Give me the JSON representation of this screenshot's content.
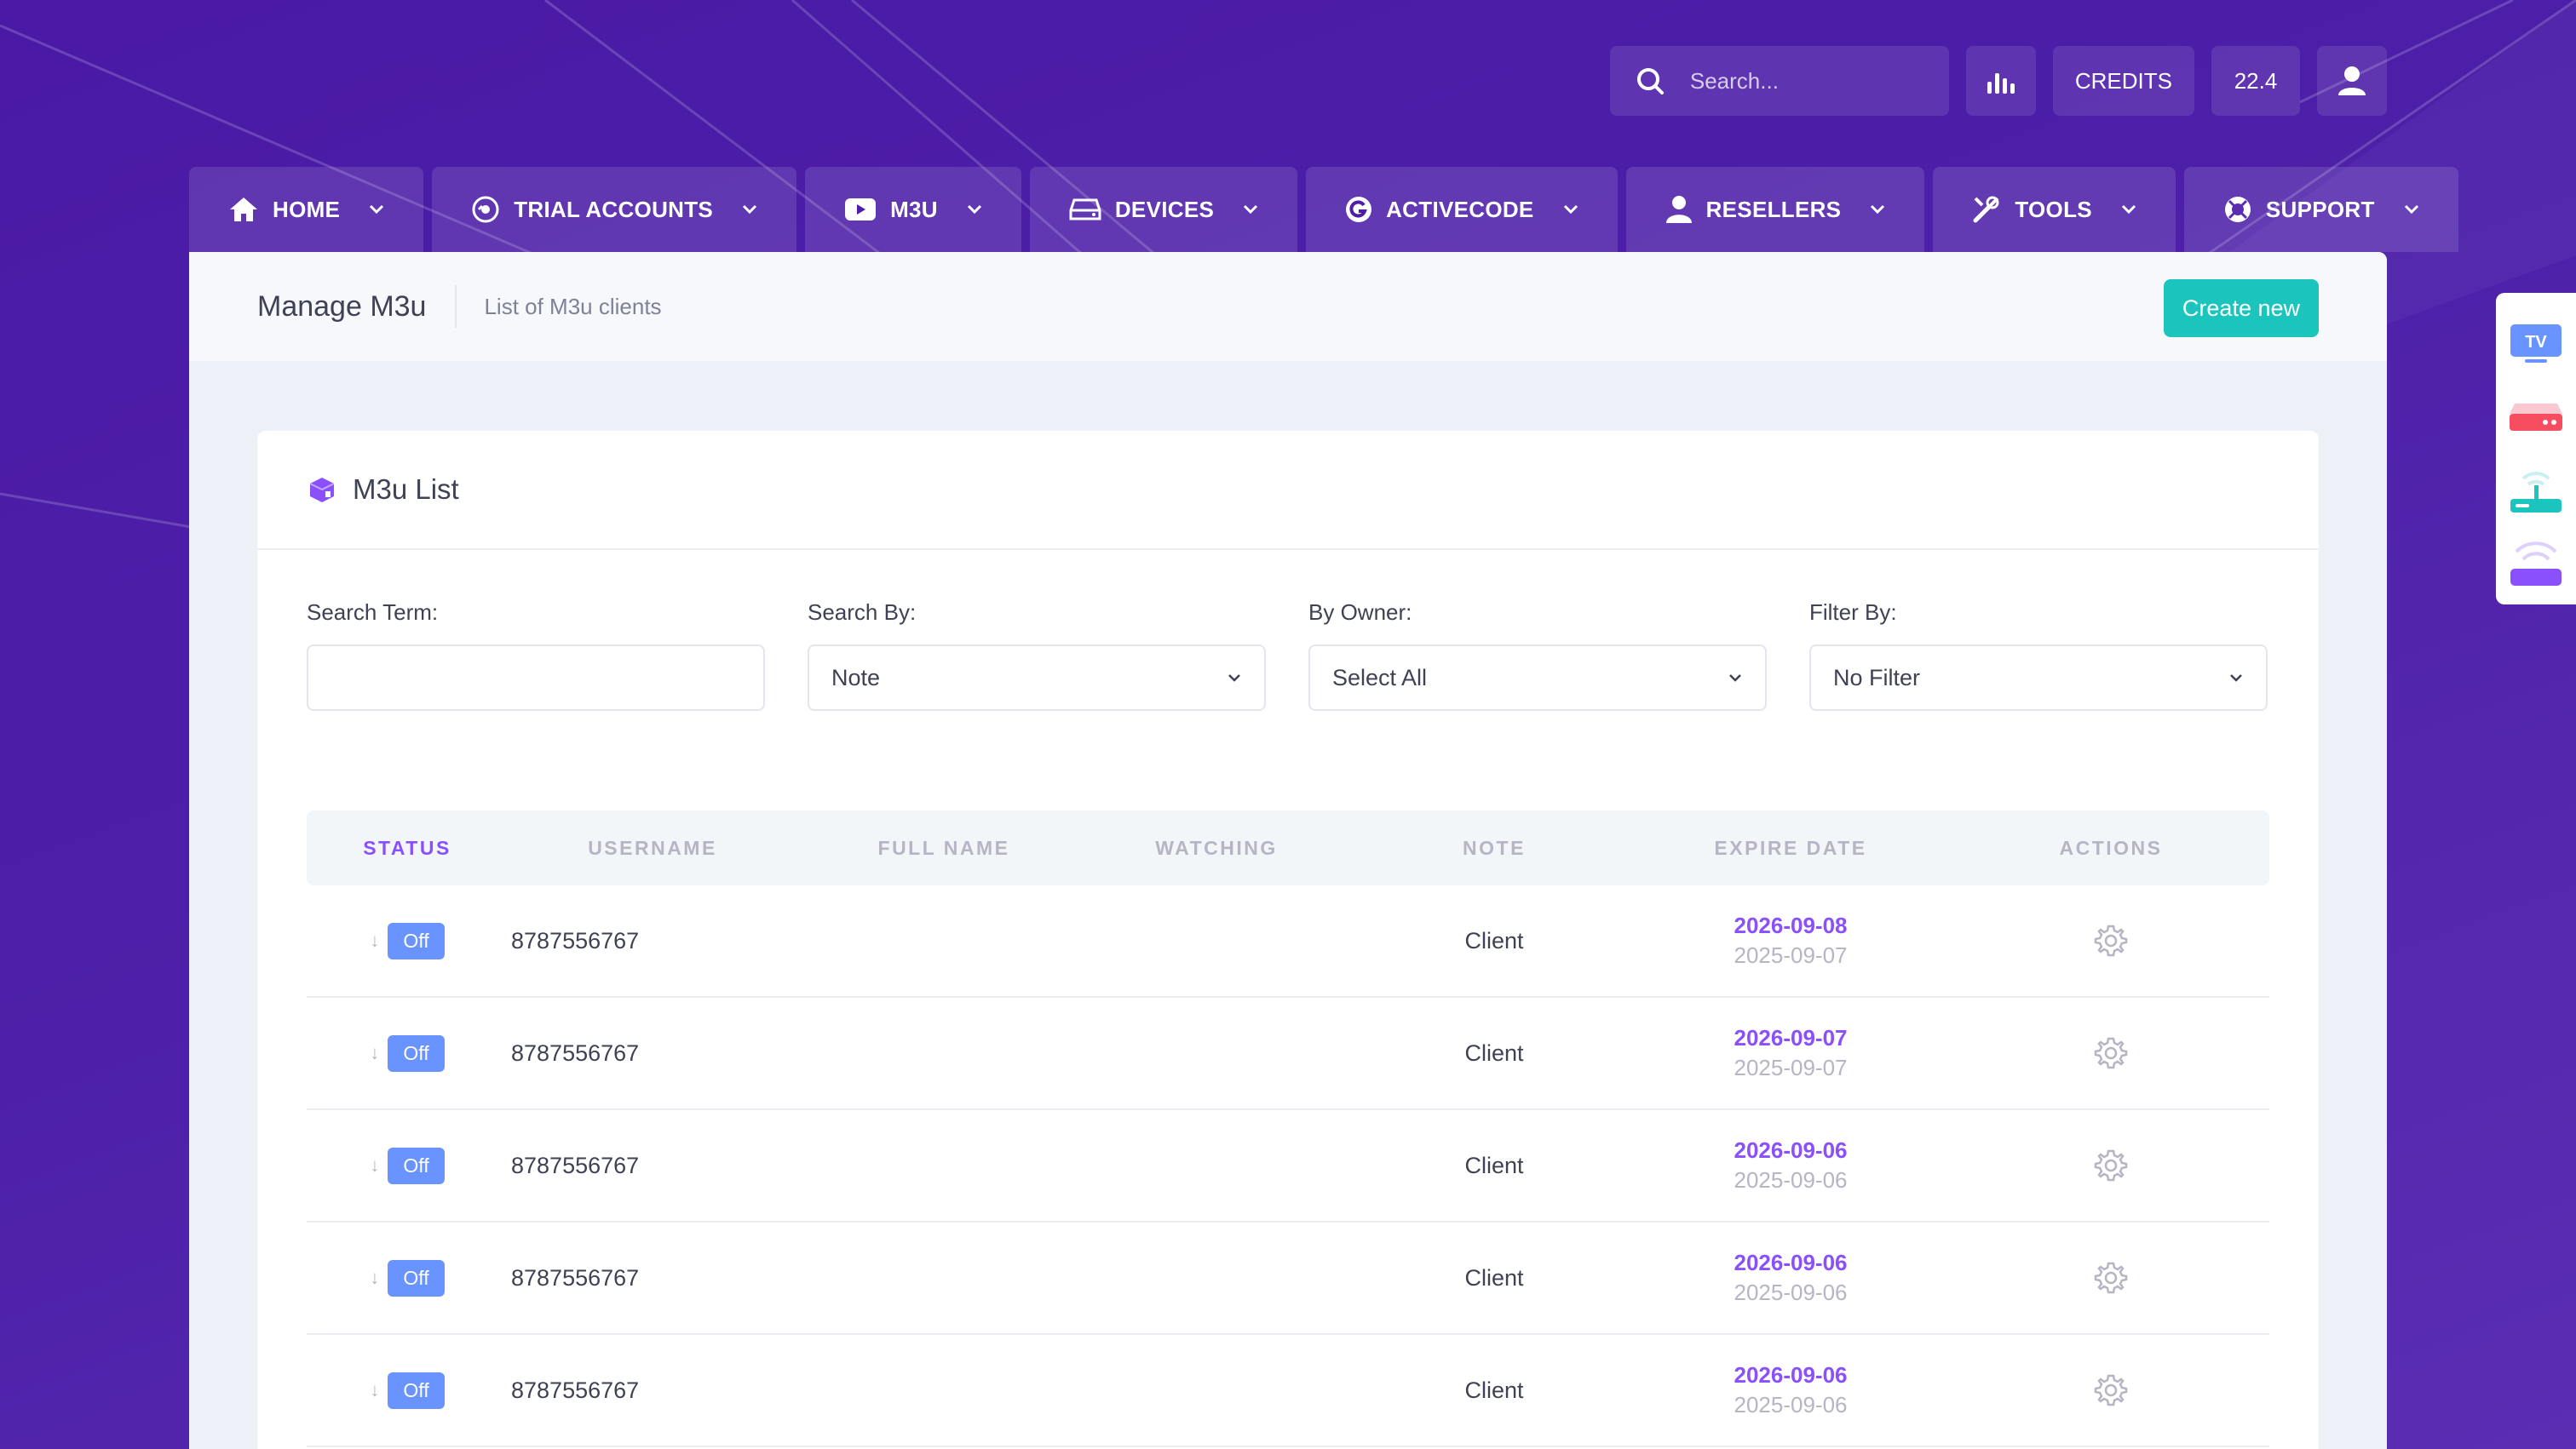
{
  "topbar": {
    "search_placeholder": "Search...",
    "credits_label": "CREDITS",
    "credits_value": "22.4",
    "icons": [
      "search-icon",
      "bar-chart-icon",
      "user-icon"
    ]
  },
  "nav": [
    {
      "label": "HOME",
      "icon": "home-icon"
    },
    {
      "label": "TRIAL ACCOUNTS",
      "icon": "trial-icon"
    },
    {
      "label": "M3U",
      "icon": "youtube-icon"
    },
    {
      "label": "DEVICES",
      "icon": "drive-icon"
    },
    {
      "label": "ACTIVECODE",
      "icon": "g-code-icon"
    },
    {
      "label": "RESELLERS",
      "icon": "person-icon"
    },
    {
      "label": "TOOLS",
      "icon": "tools-icon"
    },
    {
      "label": "SUPPORT",
      "icon": "lifebuoy-icon"
    }
  ],
  "subheader": {
    "title": "Manage M3u",
    "description": "List of M3u clients",
    "create_label": "Create new"
  },
  "card": {
    "title": "M3u List"
  },
  "filters": {
    "search_term_label": "Search Term:",
    "search_term_value": "",
    "search_by_label": "Search By:",
    "search_by_value": "Note",
    "owner_label": "By Owner:",
    "owner_value": "Select All",
    "filter_label": "Filter By:",
    "filter_value": "No Filter"
  },
  "table": {
    "headers": [
      "STATUS",
      "USERNAME",
      "FULL NAME",
      "WATCHING",
      "NOTE",
      "EXPIRE DATE",
      "ACTIONS"
    ],
    "rows": [
      {
        "status": "Off",
        "username": "8787556767",
        "full_name": "",
        "watching": "",
        "note": "Client",
        "expire": "2026-09-08",
        "created": "2025-09-07"
      },
      {
        "status": "Off",
        "username": "8787556767",
        "full_name": "",
        "watching": "",
        "note": "Client",
        "expire": "2026-09-07",
        "created": "2025-09-07"
      },
      {
        "status": "Off",
        "username": "8787556767",
        "full_name": "",
        "watching": "",
        "note": "Client",
        "expire": "2026-09-06",
        "created": "2025-09-06"
      },
      {
        "status": "Off",
        "username": "8787556767",
        "full_name": "",
        "watching": "",
        "note": "Client",
        "expire": "2026-09-06",
        "created": "2025-09-06"
      },
      {
        "status": "Off",
        "username": "8787556767",
        "full_name": "",
        "watching": "",
        "note": "Client",
        "expire": "2026-09-06",
        "created": "2025-09-06"
      }
    ]
  },
  "dock": [
    {
      "icon": "tv-icon",
      "label": "TV"
    },
    {
      "icon": "set-top-box-icon"
    },
    {
      "icon": "router-icon"
    },
    {
      "icon": "wifi-device-icon"
    }
  ],
  "colors": {
    "background": "#4a1aa6",
    "accent_teal": "#1bc5bd",
    "accent_purple": "#8950fc",
    "badge_blue": "#6993ff"
  }
}
